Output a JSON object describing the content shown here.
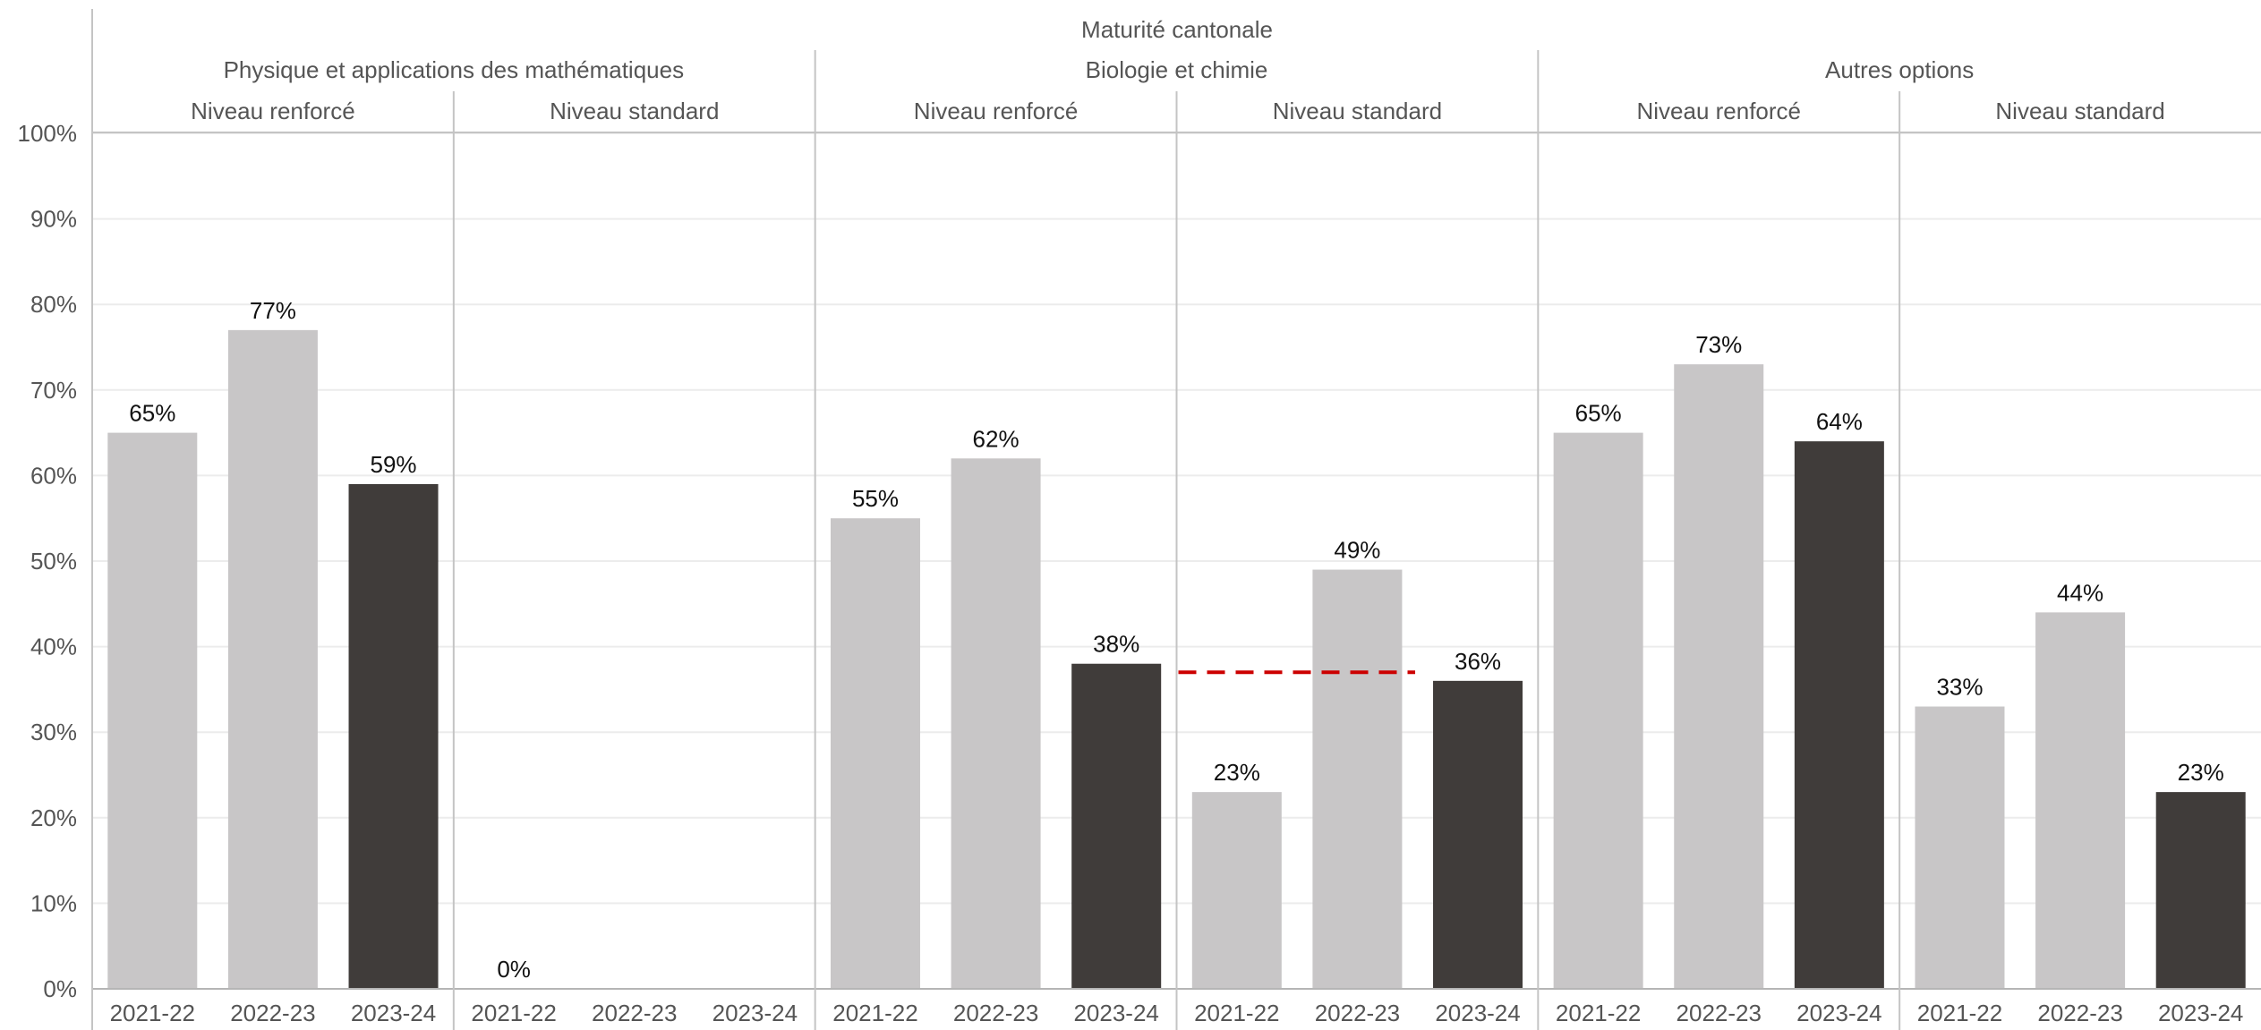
{
  "chart_data": {
    "type": "bar",
    "title": "Maturité cantonale",
    "ylim": [
      0,
      100
    ],
    "y_ticks": [
      "0%",
      "10%",
      "20%",
      "30%",
      "40%",
      "50%",
      "60%",
      "70%",
      "80%",
      "90%",
      "100%"
    ],
    "grid": true,
    "colors": {
      "previous": "#c8c6c7",
      "current": "#403c3a",
      "reference_line": "#cc0000"
    },
    "options": [
      {
        "name": "Physique et applications des mathématiques",
        "levels": [
          {
            "name": "Niveau renforcé",
            "years": [
              "2021-22",
              "2022-23",
              "2023-24"
            ],
            "values": [
              65,
              77,
              59
            ],
            "labels": [
              "65%",
              "77%",
              "59%"
            ]
          },
          {
            "name": "Niveau standard",
            "years": [
              "2021-22",
              "2022-23",
              "2023-24"
            ],
            "values": [
              0,
              null,
              null
            ],
            "labels": [
              "0%",
              "",
              ""
            ]
          }
        ]
      },
      {
        "name": "Biologie et chimie",
        "levels": [
          {
            "name": "Niveau renforcé",
            "years": [
              "2021-22",
              "2022-23",
              "2023-24"
            ],
            "values": [
              55,
              62,
              38
            ],
            "labels": [
              "55%",
              "62%",
              "38%"
            ]
          },
          {
            "name": "Niveau standard",
            "years": [
              "2021-22",
              "2022-23",
              "2023-24"
            ],
            "values": [
              23,
              49,
              36
            ],
            "labels": [
              "23%",
              "49%",
              "36%"
            ],
            "reference_line": 37
          }
        ]
      },
      {
        "name": "Autres options",
        "levels": [
          {
            "name": "Niveau renforcé",
            "years": [
              "2021-22",
              "2022-23",
              "2023-24"
            ],
            "values": [
              65,
              73,
              64
            ],
            "labels": [
              "65%",
              "73%",
              "64%"
            ]
          },
          {
            "name": "Niveau standard",
            "years": [
              "2021-22",
              "2022-23",
              "2023-24"
            ],
            "values": [
              33,
              44,
              23
            ],
            "labels": [
              "33%",
              "44%",
              "23%"
            ]
          }
        ]
      }
    ]
  }
}
